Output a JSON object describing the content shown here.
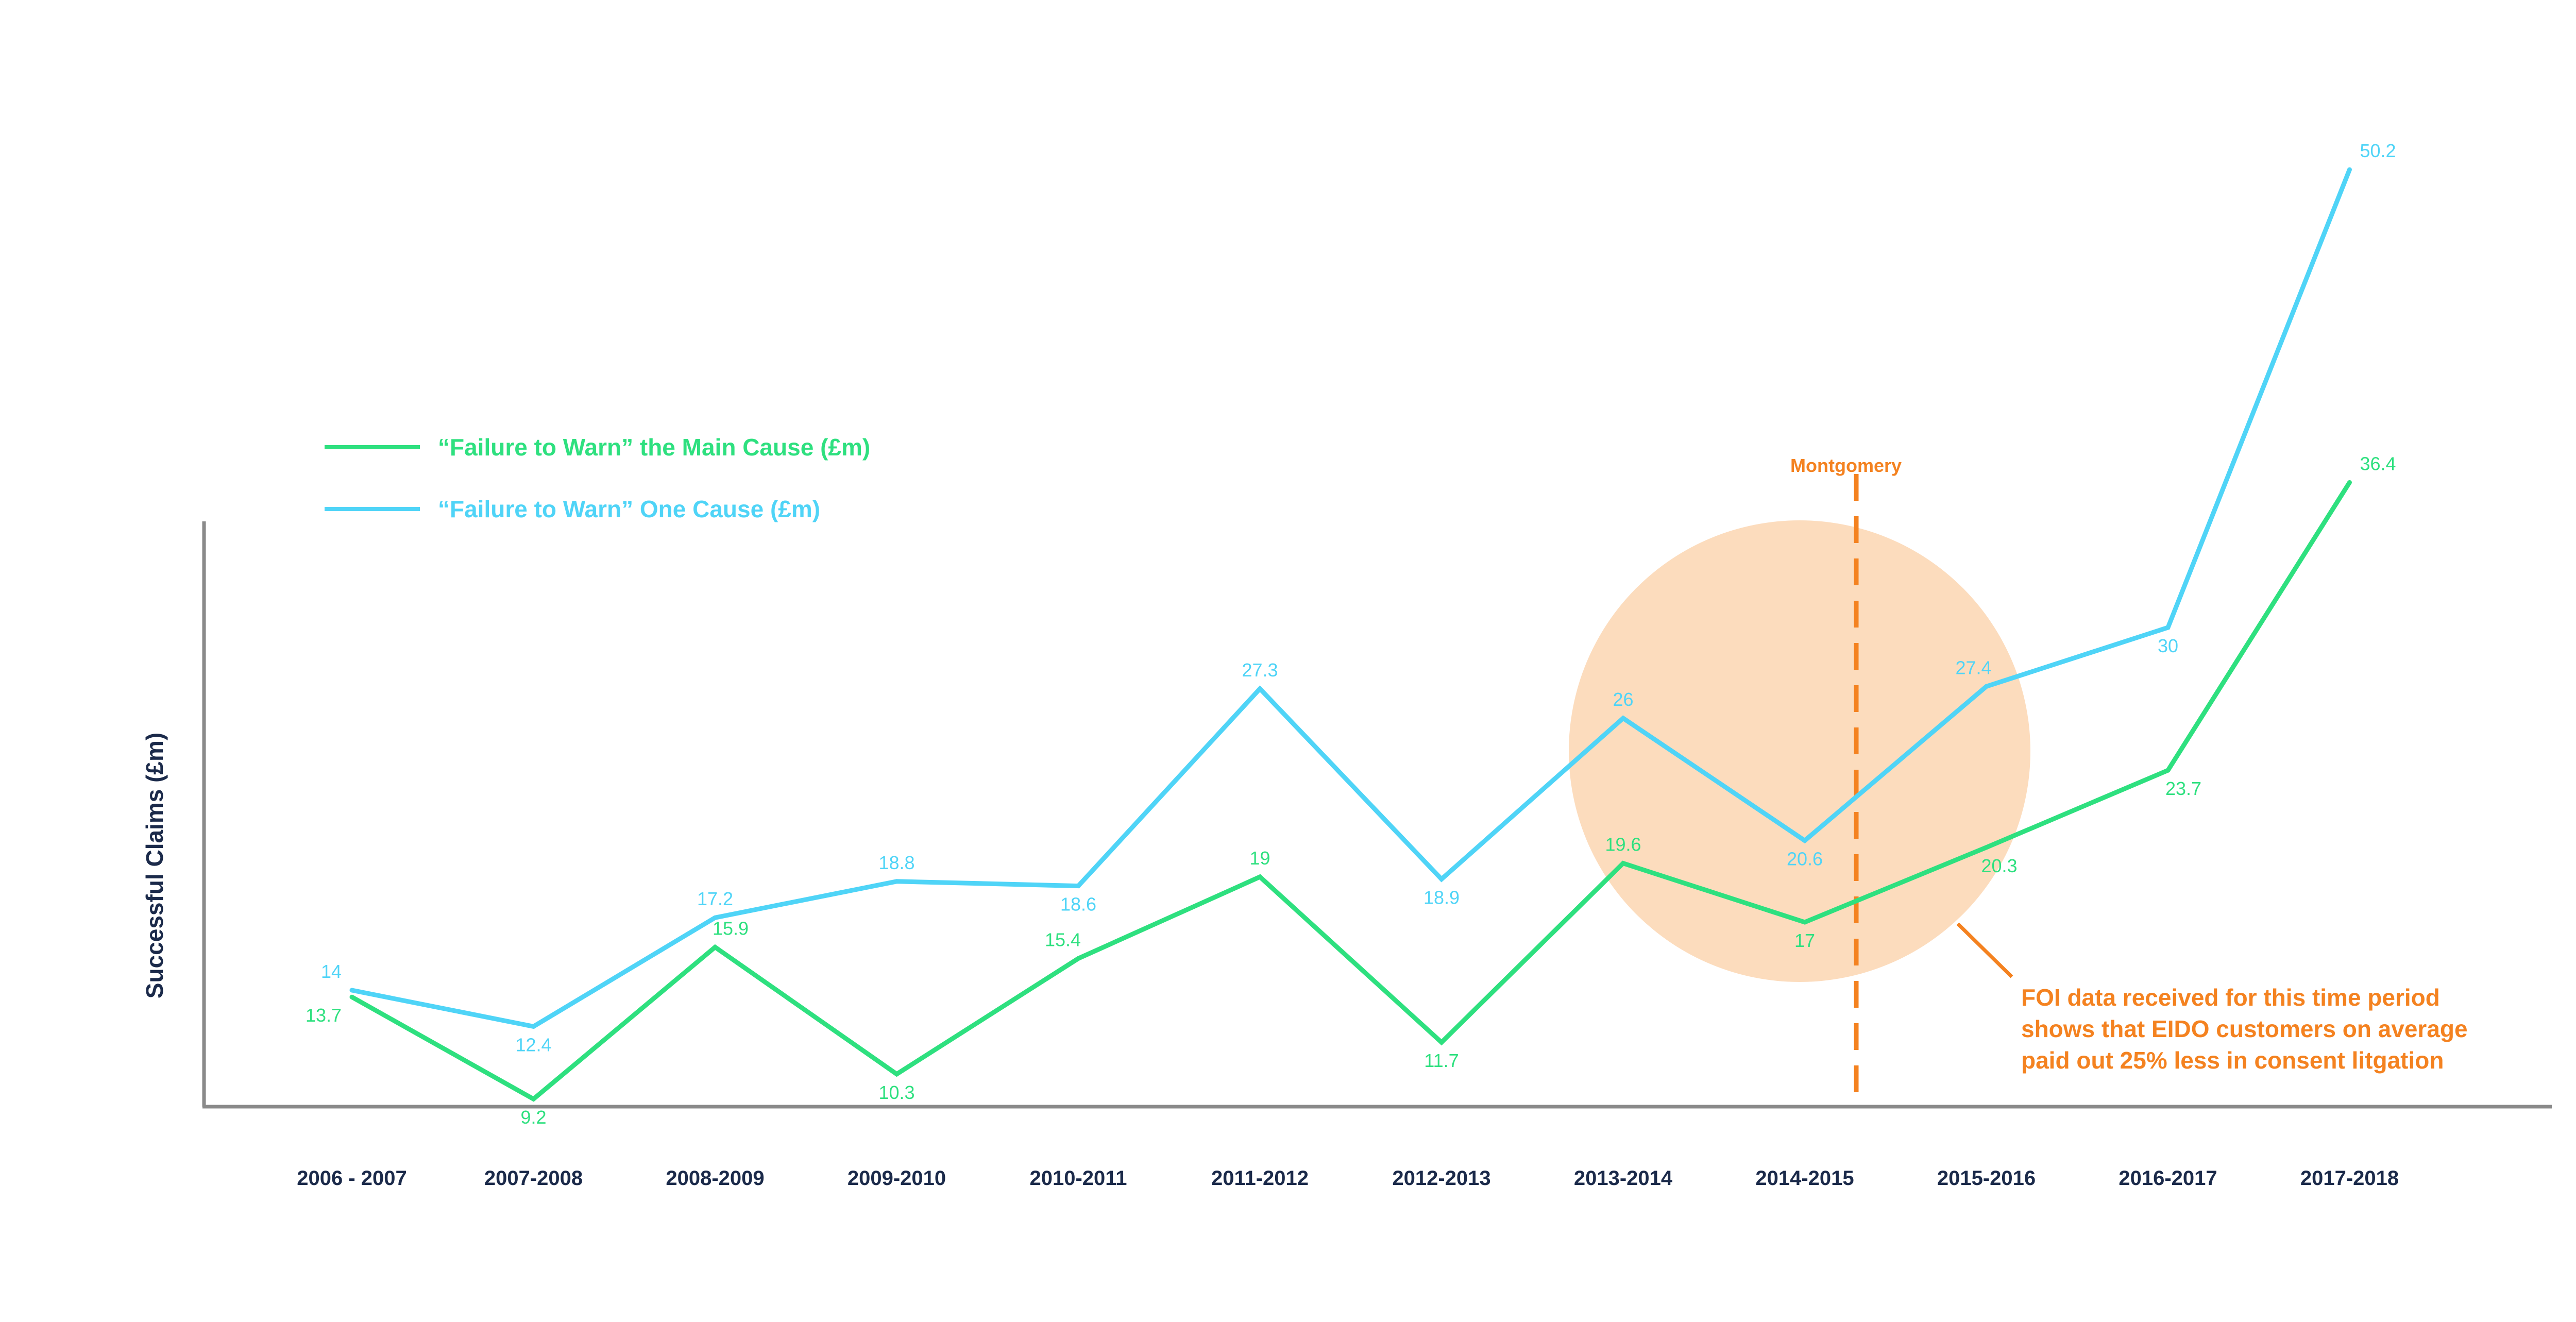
{
  "chart_data": {
    "type": "line",
    "xlabel": "",
    "ylabel": "Successful Claims (£m)",
    "categories": [
      "2006 - 2007",
      "2007-2008",
      "2008-2009",
      "2009-2010",
      "2010-2011",
      "2011-2012",
      "2012-2013",
      "2013-2014",
      "2014-2015",
      "2015-2016",
      "2016-2017",
      "2017-2018"
    ],
    "ylim": [
      0,
      55
    ],
    "grid": false,
    "legend_position": "top-left",
    "series": [
      {
        "name": "“Failure to Warn” the Main Cause (£m)",
        "color": "#2ee07f",
        "values": [
          13.7,
          9.2,
          15.9,
          10.3,
          15.4,
          19,
          11.7,
          19.6,
          17,
          20.3,
          23.7,
          36.4
        ],
        "labels": [
          "13.7",
          "9.2",
          "15.9",
          "10.3",
          "15.4",
          "19",
          "11.7",
          "19.6",
          "17",
          "20.3",
          "23.7",
          "36.4"
        ]
      },
      {
        "name": "“Failure to Warn” One Cause (£m)",
        "color": "#4fd4f7",
        "values": [
          14,
          12.4,
          17.2,
          18.8,
          18.6,
          27.3,
          18.9,
          26,
          20.6,
          27.4,
          30,
          50.2
        ],
        "labels": [
          "14",
          "12.4",
          "17.2",
          "18.8",
          "18.6",
          "27.3",
          "18.9",
          "26",
          "20.6",
          "27.4",
          "30",
          "50.2"
        ]
      }
    ],
    "annotations": {
      "marker_label": "Montgomery",
      "marker_color": "#f48220",
      "highlight_color": "#fcdcbd",
      "note": [
        "FOI data received for this time period",
        "shows that EIDO customers on average",
        "paid out 25% less in consent litgation"
      ]
    },
    "axis_color": "#8a8a8a"
  }
}
